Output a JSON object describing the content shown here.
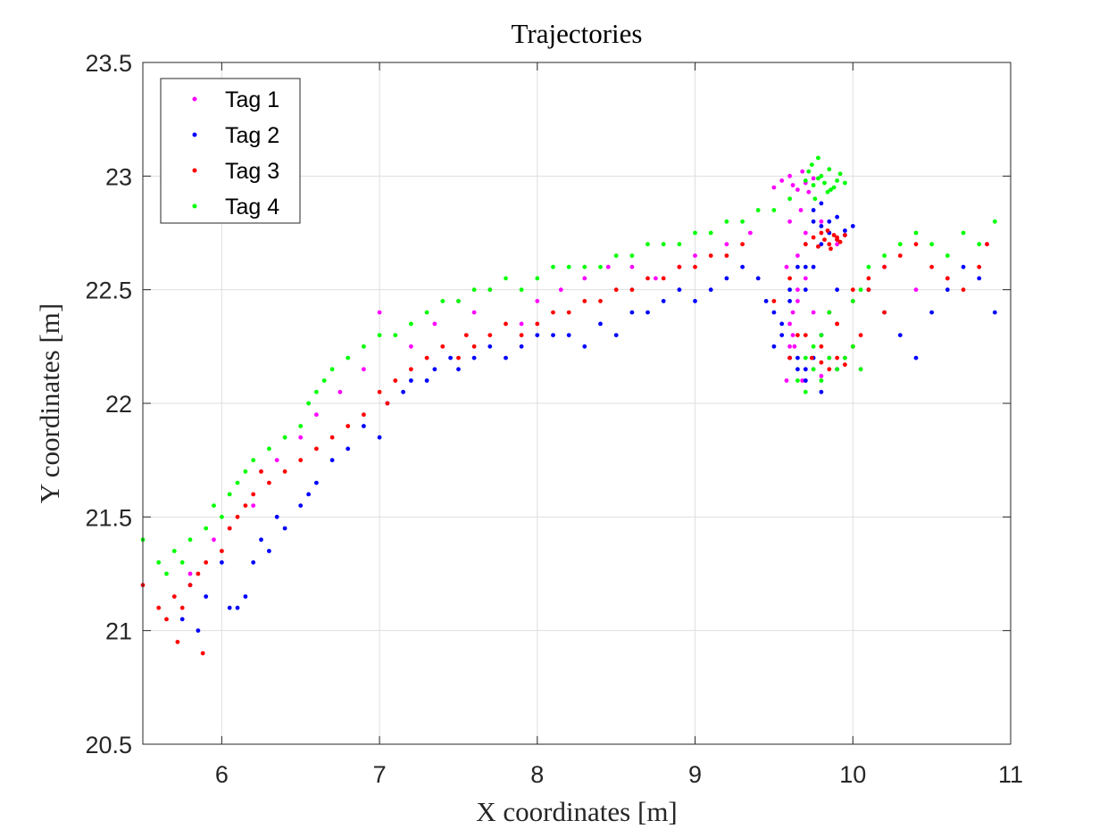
{
  "chart_data": {
    "type": "scatter",
    "title": "Trajectories",
    "xlabel": "X coordinates [m]",
    "ylabel": "Y coordinates [m]",
    "xlim": [
      5.5,
      11
    ],
    "ylim": [
      20.5,
      23.5
    ],
    "xticks": [
      6,
      7,
      8,
      9,
      10,
      11
    ],
    "yticks": [
      20.5,
      21,
      21.5,
      22,
      22.5,
      23,
      23.5
    ],
    "xtick_labels": [
      "6",
      "7",
      "8",
      "9",
      "10",
      "11"
    ],
    "ytick_labels": [
      "20.5",
      "21",
      "21.5",
      "22",
      "22.5",
      "23",
      "23.5"
    ],
    "grid": true,
    "legend_position": "top-left",
    "series": [
      {
        "name": "Tag 1",
        "color": "#ff00ff",
        "x": [
          5.8,
          5.95,
          6.05,
          6.2,
          6.25,
          6.35,
          6.5,
          6.6,
          6.75,
          6.9,
          7.0,
          7.2,
          7.35,
          7.5,
          7.6,
          7.7,
          7.9,
          8.0,
          8.15,
          8.3,
          8.45,
          8.6,
          8.75,
          8.9,
          9.0,
          9.2,
          9.35,
          9.5,
          9.55,
          9.6,
          9.62,
          9.65,
          9.68,
          9.7,
          9.72,
          9.75,
          9.6,
          9.58,
          9.65,
          9.62,
          9.7,
          9.68,
          9.6,
          9.63,
          9.7,
          9.75,
          9.8,
          9.6,
          9.65,
          9.7,
          9.75,
          9.8,
          9.85,
          9.9,
          9.95,
          10.0,
          10.05,
          9.7,
          9.8,
          9.9,
          10.2,
          10.4,
          10.6,
          10.85,
          9.65,
          9.62,
          9.6,
          9.58,
          9.67
        ],
        "y": [
          21.25,
          21.4,
          21.45,
          21.55,
          21.7,
          21.75,
          21.85,
          21.95,
          22.05,
          22.15,
          22.4,
          22.25,
          22.35,
          22.45,
          22.4,
          22.5,
          22.35,
          22.45,
          22.5,
          22.55,
          22.6,
          22.6,
          22.55,
          22.6,
          22.65,
          22.7,
          22.75,
          22.95,
          22.98,
          23.0,
          22.96,
          22.94,
          23.02,
          22.97,
          22.93,
          22.99,
          22.8,
          22.6,
          22.45,
          22.3,
          22.15,
          22.1,
          22.2,
          22.25,
          22.1,
          22.15,
          22.12,
          22.35,
          22.5,
          22.55,
          22.4,
          22.3,
          22.2,
          22.15,
          22.2,
          22.25,
          22.15,
          22.75,
          22.8,
          22.7,
          22.6,
          22.5,
          22.55,
          22.7,
          22.65,
          22.4,
          22.25,
          22.1,
          22.85
        ]
      },
      {
        "name": "Tag 2",
        "color": "#0000ff",
        "x": [
          5.75,
          5.8,
          5.85,
          5.9,
          6.0,
          6.05,
          6.1,
          6.15,
          6.2,
          6.25,
          6.3,
          6.35,
          6.4,
          6.5,
          6.55,
          6.6,
          6.7,
          6.8,
          6.9,
          7.0,
          7.05,
          7.15,
          7.2,
          7.3,
          7.35,
          7.45,
          7.5,
          7.6,
          7.7,
          7.8,
          7.9,
          8.0,
          8.1,
          8.2,
          8.3,
          8.4,
          8.5,
          8.6,
          8.7,
          8.8,
          8.9,
          9.0,
          9.1,
          9.2,
          9.3,
          9.4,
          9.45,
          9.5,
          9.55,
          9.6,
          9.65,
          9.7,
          9.75,
          9.8,
          9.85,
          9.9,
          9.95,
          10.0,
          9.8,
          9.85,
          9.9,
          9.95,
          9.75,
          9.7,
          9.6,
          9.55,
          9.5,
          9.65,
          9.7,
          9.75,
          9.8,
          9.85,
          9.9,
          9.7,
          9.75,
          9.8,
          10.1,
          10.2,
          10.3,
          10.4,
          10.5,
          10.6,
          10.7,
          10.8,
          10.9,
          9.6,
          9.65,
          9.7,
          9.8,
          9.9
        ],
        "y": [
          21.05,
          21.2,
          21.0,
          21.15,
          21.3,
          21.1,
          21.1,
          21.15,
          21.3,
          21.4,
          21.35,
          21.5,
          21.45,
          21.55,
          21.6,
          21.65,
          21.75,
          21.8,
          21.9,
          21.85,
          22.0,
          22.05,
          22.1,
          22.1,
          22.15,
          22.2,
          22.15,
          22.2,
          22.25,
          22.2,
          22.25,
          22.3,
          22.3,
          22.3,
          22.25,
          22.35,
          22.3,
          22.4,
          22.4,
          22.45,
          22.5,
          22.45,
          22.5,
          22.55,
          22.6,
          22.55,
          22.45,
          22.4,
          22.35,
          22.5,
          22.6,
          22.7,
          22.8,
          22.78,
          22.8,
          22.82,
          22.76,
          22.78,
          22.7,
          22.75,
          22.72,
          22.74,
          22.6,
          22.5,
          22.45,
          22.3,
          22.25,
          22.2,
          22.15,
          22.2,
          22.3,
          22.4,
          22.5,
          22.6,
          22.85,
          22.88,
          22.5,
          22.4,
          22.3,
          22.2,
          22.4,
          22.5,
          22.6,
          22.55,
          22.4,
          22.2,
          22.15,
          22.1,
          22.05,
          22.15
        ]
      },
      {
        "name": "Tag 3",
        "color": "#ff0000",
        "x": [
          5.5,
          5.6,
          5.65,
          5.7,
          5.72,
          5.75,
          5.8,
          5.85,
          5.88,
          5.9,
          6.0,
          6.05,
          6.1,
          6.15,
          6.2,
          6.25,
          6.3,
          6.4,
          6.5,
          6.6,
          6.7,
          6.8,
          6.9,
          7.0,
          7.05,
          7.1,
          7.2,
          7.3,
          7.4,
          7.5,
          7.55,
          7.6,
          7.7,
          7.8,
          7.9,
          8.0,
          8.1,
          8.2,
          8.3,
          8.4,
          8.5,
          8.6,
          8.7,
          8.8,
          8.9,
          9.0,
          9.1,
          9.2,
          9.3,
          9.5,
          9.6,
          9.7,
          9.75,
          9.8,
          9.82,
          9.85,
          9.88,
          9.9,
          9.92,
          9.95,
          9.78,
          9.84,
          9.86,
          9.9,
          9.74,
          9.8,
          9.85,
          9.9,
          9.95,
          10.0,
          10.05,
          9.85,
          9.9,
          10.0,
          10.1,
          10.2,
          10.3,
          10.4,
          10.5,
          10.6,
          10.7,
          10.8,
          10.85,
          9.7,
          9.8,
          9.9,
          10.0,
          10.1,
          10.2,
          9.6,
          9.65
        ],
        "y": [
          21.2,
          21.1,
          21.05,
          21.15,
          20.95,
          21.1,
          21.2,
          21.25,
          20.9,
          21.3,
          21.35,
          21.45,
          21.5,
          21.55,
          21.6,
          21.7,
          21.65,
          21.7,
          21.75,
          21.8,
          21.85,
          21.9,
          21.95,
          22.05,
          22.0,
          22.1,
          22.15,
          22.2,
          22.25,
          22.2,
          22.3,
          22.25,
          22.3,
          22.35,
          22.3,
          22.35,
          22.4,
          22.4,
          22.45,
          22.45,
          22.5,
          22.5,
          22.55,
          22.55,
          22.6,
          22.6,
          22.65,
          22.65,
          22.7,
          22.45,
          22.55,
          22.7,
          22.73,
          22.75,
          22.72,
          22.7,
          22.74,
          22.73,
          22.71,
          22.74,
          22.69,
          22.76,
          22.68,
          22.72,
          22.2,
          22.18,
          22.15,
          22.2,
          22.17,
          22.25,
          22.3,
          22.4,
          22.35,
          22.5,
          22.55,
          22.6,
          22.65,
          22.7,
          22.6,
          22.55,
          22.5,
          22.6,
          22.7,
          22.3,
          22.25,
          22.35,
          22.45,
          22.5,
          22.4,
          22.2,
          22.3
        ]
      },
      {
        "name": "Tag 4",
        "color": "#00ff00",
        "x": [
          5.5,
          5.6,
          5.65,
          5.7,
          5.75,
          5.8,
          5.9,
          5.95,
          6.0,
          6.05,
          6.1,
          6.15,
          6.2,
          6.3,
          6.4,
          6.5,
          6.55,
          6.6,
          6.65,
          6.7,
          6.8,
          6.9,
          7.0,
          7.1,
          7.2,
          7.3,
          7.4,
          7.5,
          7.6,
          7.7,
          7.8,
          7.9,
          8.0,
          8.1,
          8.2,
          8.3,
          8.4,
          8.5,
          8.6,
          8.7,
          8.8,
          8.9,
          9.0,
          9.1,
          9.2,
          9.3,
          9.4,
          9.5,
          9.6,
          9.7,
          9.72,
          9.75,
          9.78,
          9.8,
          9.82,
          9.85,
          9.88,
          9.9,
          9.92,
          9.95,
          9.74,
          9.78,
          9.84,
          9.86,
          9.76,
          9.7,
          9.75,
          9.8,
          9.85,
          9.9,
          9.95,
          10.0,
          10.05,
          9.8,
          9.85,
          10.1,
          10.2,
          10.3,
          10.4,
          10.5,
          10.6,
          10.7,
          10.8,
          10.9,
          9.65,
          9.7,
          9.75,
          10.0,
          10.05
        ],
        "y": [
          21.4,
          21.3,
          21.25,
          21.35,
          21.3,
          21.4,
          21.45,
          21.55,
          21.5,
          21.6,
          21.65,
          21.7,
          21.75,
          21.8,
          21.85,
          21.9,
          22.0,
          22.05,
          22.1,
          22.15,
          22.2,
          22.25,
          22.3,
          22.3,
          22.35,
          22.4,
          22.45,
          22.45,
          22.5,
          22.5,
          22.55,
          22.5,
          22.55,
          22.6,
          22.6,
          22.6,
          22.6,
          22.65,
          22.65,
          22.7,
          22.7,
          22.7,
          22.75,
          22.75,
          22.8,
          22.8,
          22.85,
          22.85,
          22.9,
          22.98,
          23.02,
          22.96,
          22.99,
          23.0,
          22.97,
          23.03,
          22.95,
          22.98,
          23.01,
          22.97,
          23.05,
          23.08,
          22.93,
          22.94,
          22.9,
          22.2,
          22.15,
          22.1,
          22.2,
          22.15,
          22.2,
          22.25,
          22.15,
          22.3,
          22.4,
          22.6,
          22.65,
          22.7,
          22.75,
          22.7,
          22.65,
          22.75,
          22.7,
          22.8,
          22.1,
          22.05,
          22.25,
          22.45,
          22.5
        ]
      }
    ]
  }
}
